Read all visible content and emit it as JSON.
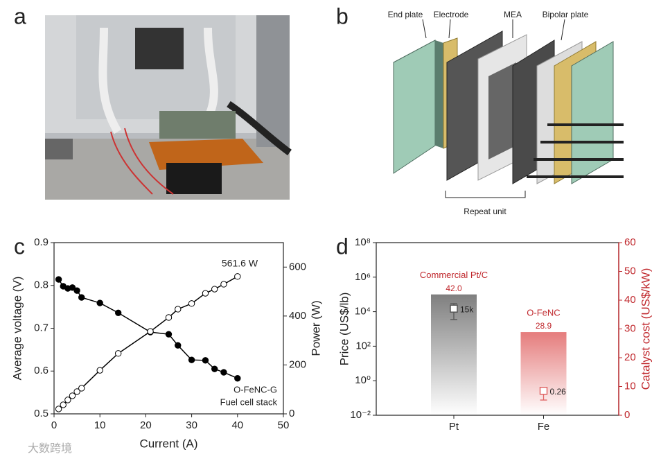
{
  "panel_labels": [
    "a",
    "b",
    "c",
    "d"
  ],
  "diagram": {
    "labels": [
      "End plate",
      "Electrode",
      "MEA",
      "Bipolar plate"
    ],
    "bracket_label": "Repeat unit"
  },
  "watermark": "大数跨境",
  "chart_data": [
    {
      "type": "line",
      "xlabel": "Current (A)",
      "ylabel": "Average voltage (V)",
      "y2label": "Power (W)",
      "xlim": [
        0,
        50
      ],
      "xticks": [
        0,
        10,
        20,
        30,
        40,
        50
      ],
      "ylim": [
        0.5,
        0.9
      ],
      "yticks": [
        0.5,
        0.6,
        0.7,
        0.8,
        0.9
      ],
      "y2lim": [
        0,
        700
      ],
      "y2ticks": [
        0,
        200,
        400,
        600
      ],
      "x": [
        1,
        2,
        3,
        4,
        5,
        6,
        10,
        14,
        21,
        25,
        27,
        30,
        33,
        35,
        37,
        40
      ],
      "series": [
        {
          "color": "#000000",
          "marker": "filled",
          "values": [
            0.814,
            0.798,
            0.793,
            0.795,
            0.788,
            0.772,
            0.759,
            0.736,
            0.691,
            0.686,
            0.66,
            0.626,
            0.625,
            0.605,
            0.597,
            0.583
          ]
        },
        {
          "color": "#000000",
          "marker": "open",
          "axis": "y2",
          "values": [
            20,
            37,
            57,
            74,
            91,
            105,
            178,
            247,
            337,
            394,
            428,
            451,
            493,
            510,
            530,
            561.6
          ]
        }
      ],
      "annotations": [
        "561.6 W",
        "O-FeNC-G",
        "Fuel cell stack"
      ]
    },
    {
      "type": "bar",
      "ylabel": "Price (US$/lb)",
      "y2label": "Catalyst cost (US$/kW)",
      "log_y": true,
      "ylim": [
        0.01,
        100000000
      ],
      "yticks": [
        {
          "value": 0.01,
          "label": "10⁻²"
        },
        {
          "value": 1,
          "label": "10⁰"
        },
        {
          "value": 100,
          "label": "10²"
        },
        {
          "value": 10000,
          "label": "10⁴"
        },
        {
          "value": 1000000,
          "label": "10⁶"
        },
        {
          "value": 100000000,
          "label": "10⁸"
        }
      ],
      "y2lim": [
        0,
        60
      ],
      "y2ticks": [
        0,
        10,
        20,
        30,
        40,
        50,
        60
      ],
      "y2color": "#c0282d",
      "categories": [
        "Pt",
        "Fe"
      ],
      "series": [
        {
          "axis": "y2",
          "colors": [
            "#7f7f7f",
            "#e57c7c"
          ],
          "label_color": "#c0282d",
          "values": [
            42.0,
            28.9
          ],
          "value_labels": [
            "42.0",
            "28.9"
          ],
          "bar_labels": [
            "Commercial Pt/C",
            "O-FeNC"
          ]
        },
        {
          "colors": [
            "#555555",
            "#e06666"
          ],
          "values": [
            15000,
            0.26
          ],
          "value_labels": [
            "15k",
            "0.26"
          ],
          "error_low": [
            3500,
            0.076
          ],
          "error_high": [
            29500,
            0.37
          ]
        }
      ]
    }
  ]
}
